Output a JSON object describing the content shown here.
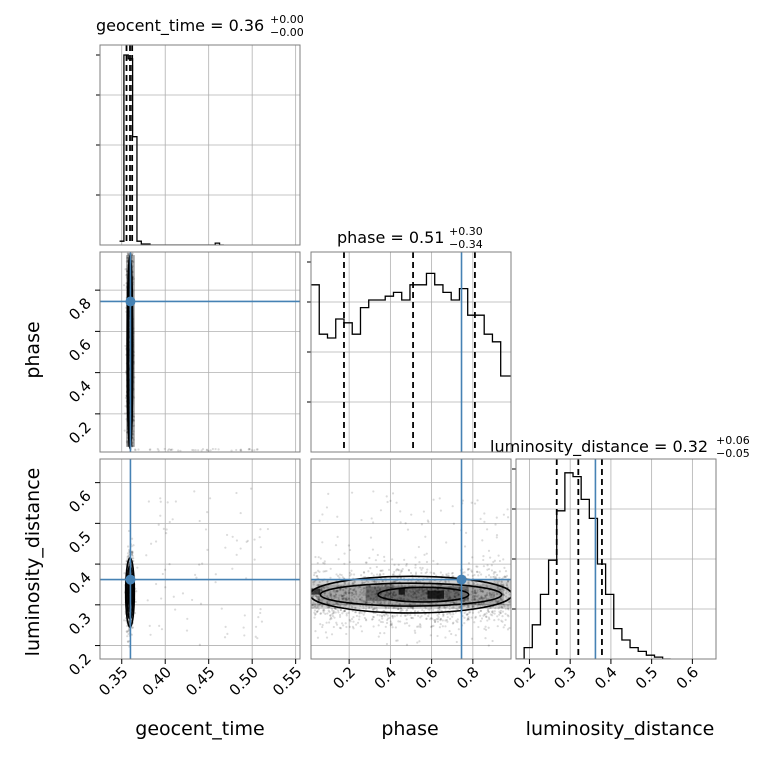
{
  "chart_data": {
    "type": "corner",
    "parameters": [
      "geocent_time",
      "phase",
      "luminosity_distance"
    ],
    "titles": [
      {
        "param": "geocent_time",
        "median": "0.36",
        "plus": "+0.00",
        "minus": "−0.00"
      },
      {
        "param": "phase",
        "median": "0.51",
        "plus": "+0.30",
        "minus": "−0.34"
      },
      {
        "param": "luminosity_distance",
        "median": "0.32",
        "plus": "+0.06",
        "minus": "−0.05"
      }
    ],
    "truths": {
      "geocent_time": 0.36,
      "phase": 0.745,
      "luminosity_distance": 0.362
    },
    "axis_ranges": {
      "geocent_time": [
        0.325,
        0.555
      ],
      "phase": [
        0.015,
        0.985
      ],
      "luminosity_distance": [
        0.167,
        0.658
      ]
    },
    "tick_labels": {
      "geocent_time": [
        "0.35",
        "0.40",
        "0.45",
        "0.50",
        "0.55"
      ],
      "phase_x": [
        "0.2",
        "0.4",
        "0.6",
        "0.8"
      ],
      "phase_y": [
        "0.2",
        "0.4",
        "0.6",
        "0.8"
      ],
      "luminosity_distance_x": [
        "0.2",
        "0.3",
        "0.4",
        "0.5",
        "0.6"
      ],
      "luminosity_distance_y": [
        "0.2",
        "0.3",
        "0.4",
        "0.5",
        "0.6"
      ]
    },
    "tick_values": {
      "geocent_time": [
        0.35,
        0.4,
        0.45,
        0.5,
        0.55
      ],
      "phase": [
        0.2,
        0.4,
        0.6,
        0.8
      ],
      "luminosity_distance": [
        0.2,
        0.3,
        0.4,
        0.5,
        0.6
      ]
    },
    "axis_labels": {
      "x": [
        "geocent_time",
        "phase",
        "luminosity_distance"
      ],
      "y": [
        "phase",
        "luminosity_distance"
      ]
    },
    "grid": true,
    "quantiles": {
      "geocent_time": [
        0.3555,
        0.3595,
        0.362
      ],
      "phase": [
        0.175,
        0.51,
        0.81
      ],
      "luminosity_distance": [
        0.267,
        0.32,
        0.378
      ]
    },
    "histograms": {
      "geocent_time": {
        "edges": [
          0.3475,
          0.3525,
          0.3575,
          0.3625,
          0.3675,
          0.3725,
          0.3775,
          0.3825,
          0.3875,
          0.4575,
          0.4625,
          0.4675
        ],
        "counts": [
          0.02,
          1.0,
          0.98,
          0.57,
          0.02,
          0.005,
          0.005,
          0.0,
          0.0,
          0.01,
          0.0
        ]
      },
      "phase": {
        "edges": [
          0.015,
          0.055,
          0.095,
          0.135,
          0.175,
          0.215,
          0.255,
          0.295,
          0.335,
          0.375,
          0.415,
          0.455,
          0.495,
          0.535,
          0.575,
          0.615,
          0.655,
          0.695,
          0.735,
          0.775,
          0.815,
          0.855,
          0.895,
          0.935,
          0.985
        ],
        "counts": [
          0.88,
          0.62,
          0.6,
          0.7,
          0.68,
          0.62,
          0.76,
          0.8,
          0.8,
          0.82,
          0.84,
          0.8,
          0.88,
          0.88,
          0.94,
          0.88,
          0.84,
          0.8,
          0.86,
          0.72,
          0.72,
          0.62,
          0.58,
          0.4
        ]
      },
      "luminosity_distance": {
        "edges": [
          0.167,
          0.187,
          0.207,
          0.227,
          0.247,
          0.267,
          0.287,
          0.307,
          0.327,
          0.347,
          0.367,
          0.387,
          0.407,
          0.427,
          0.447,
          0.467,
          0.487,
          0.507,
          0.527,
          0.547
        ],
        "counts": [
          0.0,
          0.06,
          0.18,
          0.34,
          0.52,
          0.78,
          0.98,
          0.96,
          0.84,
          0.74,
          0.5,
          0.34,
          0.16,
          0.1,
          0.06,
          0.04,
          0.02,
          0.01,
          0.0
        ]
      }
    }
  }
}
